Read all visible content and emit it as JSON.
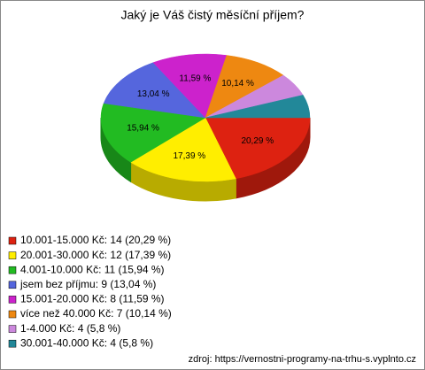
{
  "chart_data": {
    "type": "pie",
    "title": "Jaký je Váš čistý měsíční příjem?",
    "categories": [
      "10.001-15.000 Kč: 14 (20,29 %)",
      "20.001-30.000 Kč: 12 (17,39 %)",
      "4.001-10.000 Kč: 11 (15,94 %)",
      "jsem bez příjmu: 9 (13,04 %)",
      "15.001-20.000 Kč: 8 (11,59 %)",
      "více než 40.000 Kč: 7 (10,14 %)",
      "1-4.000 Kč: 4 (5,8 %)",
      "30.001-40.000 Kč: 4 (5,8 %)"
    ],
    "values": [
      20.29,
      17.39,
      15.94,
      13.04,
      11.59,
      10.14,
      5.8,
      5.8
    ],
    "value_labels": [
      "20,29 %",
      "17,39 %",
      "15,94 %",
      "13,04 %",
      "11,59 %",
      "10,14 %",
      null,
      null
    ],
    "colors": [
      "#dd2211",
      "#ffee00",
      "#22bb22",
      "#5566dd",
      "#cc22cc",
      "#ee8811",
      "#cc88dd",
      "#228899"
    ],
    "source": "zdroj: https://vernostni-programy-na-trhu-s.vyplnto.cz"
  }
}
